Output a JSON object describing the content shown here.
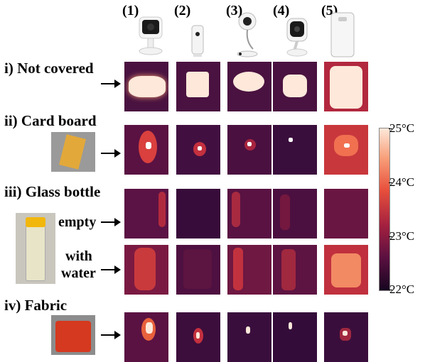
{
  "columns": [
    "(1)",
    "(2)",
    "(3)",
    "(4)",
    "(5)"
  ],
  "devices": [
    "camera-1-icon",
    "camera-2-icon",
    "camera-3-icon",
    "camera-4-icon",
    "phone-icon"
  ],
  "rows": {
    "not_covered": "i) Not covered",
    "card_board": "ii) Card board",
    "glass_bottle": "iii) Glass bottle",
    "empty": "empty",
    "with_water_1": "with",
    "with_water_2": "water",
    "fabric": "iv) Fabric"
  },
  "colorbar": {
    "max": "25°C",
    "t24": "24°C",
    "t23": "23°C",
    "min": "22°C",
    "colors": [
      "#fde8da",
      "#f8a07a",
      "#e8503c",
      "#a3203f",
      "#5a1040",
      "#170520"
    ]
  }
}
